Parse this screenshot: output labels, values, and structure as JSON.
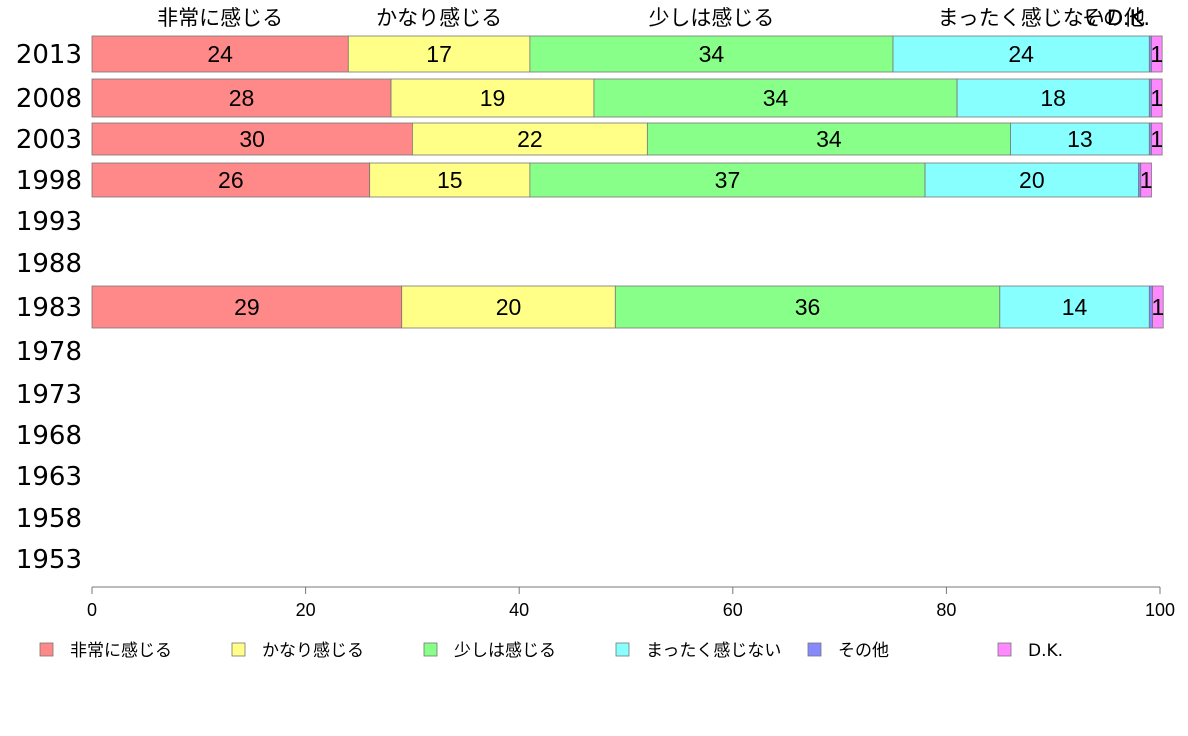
{
  "chart_data": {
    "type": "bar",
    "orientation": "horizontal",
    "stacked": true,
    "categories": [
      "2013",
      "2008",
      "2003",
      "1998",
      "1993",
      "1988",
      "1983",
      "1978",
      "1973",
      "1968",
      "1963",
      "1958",
      "1953"
    ],
    "series": [
      {
        "name": "非常に感じる",
        "color": "#ff8888",
        "values": [
          24,
          28,
          30,
          26,
          null,
          null,
          29,
          null,
          null,
          null,
          null,
          null,
          null
        ]
      },
      {
        "name": "かなり感じる",
        "color": "#ffff88",
        "values": [
          17,
          19,
          22,
          15,
          null,
          null,
          20,
          null,
          null,
          null,
          null,
          null,
          null
        ]
      },
      {
        "name": "少しは感じる",
        "color": "#88ff88",
        "values": [
          34,
          34,
          34,
          37,
          null,
          null,
          36,
          null,
          null,
          null,
          null,
          null,
          null
        ]
      },
      {
        "name": "まったく感じない",
        "color": "#88ffff",
        "values": [
          24,
          18,
          13,
          20,
          null,
          null,
          14,
          null,
          null,
          null,
          null,
          null,
          null
        ]
      },
      {
        "name": "その他",
        "color": "#8888ff",
        "values": [
          0.2,
          0.2,
          0.2,
          0.2,
          null,
          null,
          0.3,
          null,
          null,
          null,
          null,
          null,
          null
        ]
      },
      {
        "name": "D.K.",
        "color": "#ff88ff",
        "values": [
          1,
          1,
          1,
          1,
          null,
          null,
          1,
          null,
          null,
          null,
          null,
          null,
          null
        ]
      }
    ],
    "top_labels": [
      "非常に感じる",
      "かなり感じる",
      "少しは感じる",
      "まったく感じない",
      "その他",
      "D.K."
    ],
    "xlim": [
      0,
      100
    ],
    "xticks": [
      0,
      20,
      40,
      60,
      80,
      100
    ],
    "legend": "bottom",
    "grid": false
  }
}
